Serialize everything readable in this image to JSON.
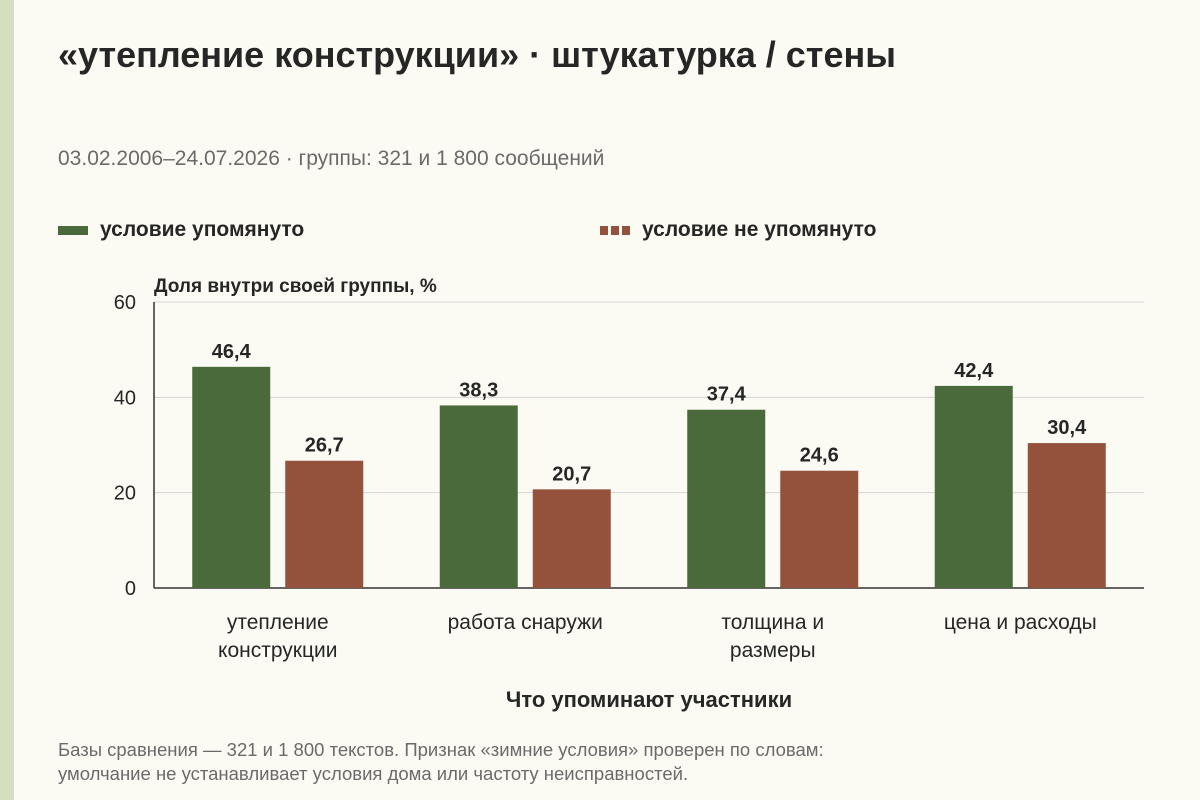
{
  "title": "«утепление конструкции» · штукатурка / стены",
  "subtitle": "03.02.2006–24.07.2026 · группы: 321 и 1 800 сообщений",
  "legend": [
    {
      "label": "условие упомянуто",
      "color": "#4a6a3c",
      "style": "solid"
    },
    {
      "label": "условие не упомянуто",
      "color": "#94513c",
      "style": "dashed"
    }
  ],
  "note": {
    "line1": "Базы сравнения — 321 и 1 800 текстов. Признак «зимние условия» проверен по словам:",
    "line2": "умолчание не устанавливает условия дома или частоту неисправностей."
  },
  "colors": {
    "background": "#fcfbf3",
    "stripe": "#d4dfc0",
    "grid": "#d4d4d4",
    "axis": "#333333",
    "text": "#262626",
    "muted": "#6a6a6a"
  },
  "chart_data": {
    "type": "bar",
    "title": "",
    "xlabel": "Что упоминают участники",
    "ylabel": "Доля внутри своей группы, %",
    "ylim": [
      0,
      60
    ],
    "yticks": [
      0,
      20,
      40,
      60
    ],
    "grid": true,
    "legend_position": "top",
    "categories": [
      [
        "утепление",
        "конструкции"
      ],
      [
        "работа снаружи"
      ],
      [
        "толщина и",
        "размеры"
      ],
      [
        "цена и расходы"
      ]
    ],
    "series": [
      {
        "name": "условие упомянуто",
        "color": "#4a6a3c",
        "values": [
          46.4,
          38.3,
          37.4,
          42.4
        ],
        "labels": [
          "46,4",
          "38,3",
          "37,4",
          "42,4"
        ]
      },
      {
        "name": "условие не упомянуто",
        "color": "#94513c",
        "values": [
          26.7,
          20.7,
          24.6,
          30.4
        ],
        "labels": [
          "26,7",
          "20,7",
          "24,6",
          "30,4"
        ]
      }
    ]
  }
}
